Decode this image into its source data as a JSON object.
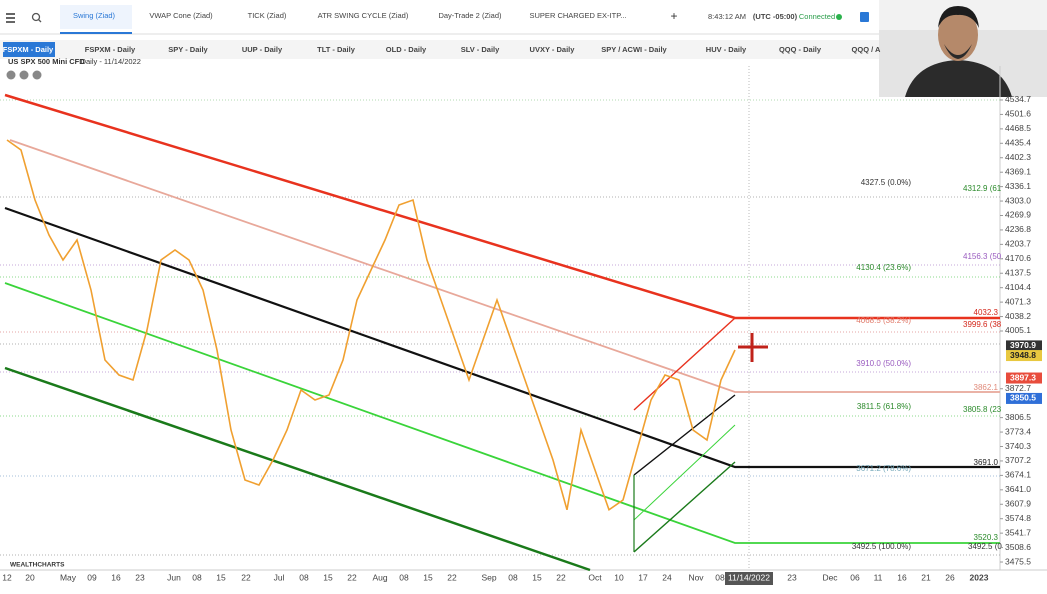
{
  "toolbar": {
    "tabs": [
      "Swing (Ziad)",
      "VWAP Cone (Ziad)",
      "TICK (Ziad)",
      "ATR SWING CYCLE (Ziad)",
      "Day-Trade 2 (Ziad)",
      "SUPER CHARGED EX-ITP..."
    ],
    "add": "+",
    "time": "8:43:12 AM",
    "timezone": "(UTC -05:00)",
    "status": "Connected"
  },
  "watchlist": [
    "FSPXM - Daily",
    "FSPXM - Daily",
    "SPY - Daily",
    "UUP - Daily",
    "TLT - Daily",
    "OLD - Daily",
    "SLV - Daily",
    "UVXY - Daily",
    "SPY / ACWI - Daily",
    "HUV - Daily",
    "QQQ - Daily",
    "QQQ / A"
  ],
  "chart": {
    "type": "line",
    "symbol": "US SPX 500 Mini CFD",
    "period": "- Daily - 11/14/2022",
    "logo": "WEALTHCHARTS",
    "ylim": [
      3457.2,
      4612.6
    ],
    "yticks": [
      4534.7,
      4501.6,
      4468.5,
      4435.4,
      4402.3,
      4369.1,
      4336.1,
      {
        "value": 4303,
        "label": "4303.0"
      },
      4269.9,
      4236.8,
      4203.7,
      4170.6,
      4137.5,
      4104.4,
      4071.3,
      4038.2,
      4005.1,
      3872.7,
      3806.5,
      3773.4,
      3740.3,
      3707.2,
      3674.1,
      {
        "value": 3641,
        "label": "3641.0"
      },
      3607.9,
      3574.8,
      3541.7,
      3508.6,
      3475.5
    ],
    "x_labels": [
      "12",
      "20",
      "May",
      "09",
      "16",
      "23",
      "Jun",
      "08",
      "15",
      "22",
      "Jul",
      "08",
      "15",
      "22",
      "Aug",
      "08",
      "15",
      "22",
      "Sep",
      "08",
      "15",
      "22",
      "Oct",
      "10",
      "17",
      "24",
      "Nov",
      "08",
      "11/14/2022",
      "23",
      "Dec",
      "06",
      "11",
      "16",
      "21",
      "26",
      "2023"
    ],
    "price": {
      "color": "#f0a030",
      "values": [
        4443.0,
        4420.1,
        4305.4,
        4225.2,
        4167.9,
        4213.7,
        4099.1,
        3938.6,
        3904.2,
        3892.8,
        4007.4,
        4167.9,
        4190.8,
        4167.9,
        4099.1,
        3961.5,
        3778.1,
        3663.5,
        3652.0,
        3709.4,
        3778.1,
        3869.8,
        3846.9,
        3858.4,
        3938.6,
        4076.2,
        4145.0,
        4213.7,
        4294.0,
        4305.4,
        4167.9,
        4076.2,
        3984.5,
        3892.8,
        3984.5,
        4076.2,
        3984.5,
        3892.8,
        3801.1,
        3709.4,
        3595.2,
        3778.1,
        3686.4,
        3595.2,
        3617.7,
        3732.3,
        3846.9,
        3904.2,
        3892.8,
        3778.1,
        3755.2,
        3892.8,
        3961.5
      ]
    },
    "price_tags": [
      {
        "value": 3970.9,
        "color": "#333333"
      },
      {
        "value": 3948.8,
        "color": "#e8c840"
      },
      {
        "value": 3897.3,
        "color": "#e84c3c"
      },
      {
        "value": 3850.5,
        "color": "#2f6fd8"
      }
    ],
    "levels": [
      "4327.5 (0.0%)",
      "4312.9 (61",
      "4156.3 (50.",
      "4130.4 (23.6%)",
      "4068.5 (38.2%)",
      "4032.3",
      "3999.6 (38",
      "3910.0 (50.0%)",
      "3862.1",
      "3811.5 (61.8%)",
      "3805.8 (23",
      "3691.0",
      "3671.2 (78.6%)",
      "3520.3",
      "3492.5 (100.0%)",
      "3492.5 (0"
    ]
  }
}
